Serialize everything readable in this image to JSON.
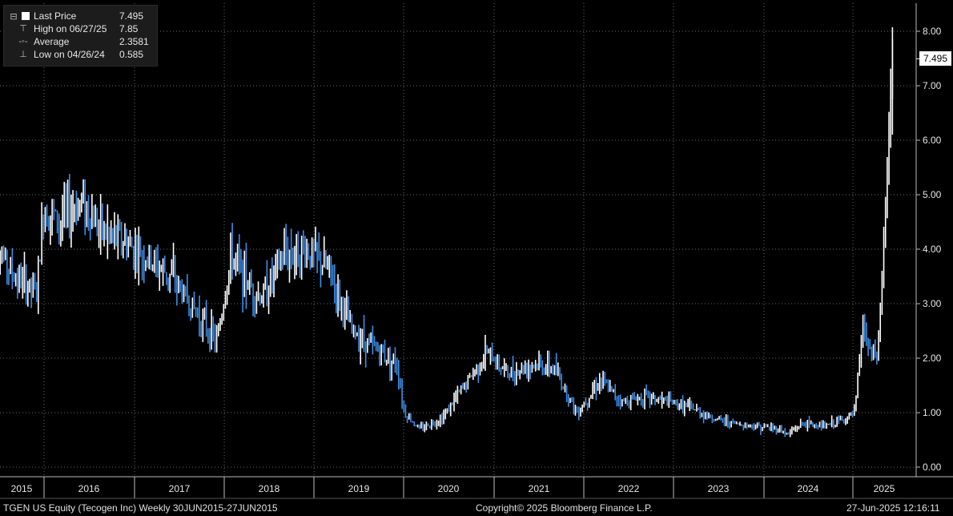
{
  "legend": {
    "last_label": "Last Price",
    "last_value": "7.495",
    "high_label": "High on 06/27/25",
    "high_value": "7.85",
    "avg_label": "Average",
    "avg_value": "2.3581",
    "low_label": "Low on 04/26/24",
    "low_value": "0.585"
  },
  "footer": {
    "left": "TGEN US Equity (Tecogen Inc)  Weekly 30JUN2015-27JUN2015",
    "center": "Copyright© 2025 Bloomberg Finance L.P.",
    "right": "27-Jun-2025 12:16:11"
  },
  "last_tag": "7.495",
  "colors": {
    "background": "#000000",
    "up": "#ffffff",
    "down": "#3d8ee8",
    "grid": "#6a6a6a",
    "text": "#e6e6e6"
  },
  "chart_data": {
    "type": "line",
    "frequency": "weekly",
    "title": "",
    "x_ticks": [
      "2015",
      "2016",
      "2017",
      "2018",
      "2019",
      "2020",
      "2021",
      "2022",
      "2023",
      "2024",
      "2025"
    ],
    "y_ticks": [
      "0.00",
      "1.00",
      "2.00",
      "3.00",
      "4.00",
      "5.00",
      "6.00",
      "7.00",
      "8.00"
    ],
    "ylim": [
      0,
      8.4
    ],
    "grid": true,
    "legend_position": "top-left",
    "y_axis_side": "right",
    "last_price": 7.495,
    "high": 7.85,
    "average": 2.3581,
    "low": 0.585,
    "series": [
      {
        "x": [
          "2015-06",
          "2015-09",
          "2015-12",
          "2016-01",
          "2016-03",
          "2016-06",
          "2016-09",
          "2016-12",
          "2017-03",
          "2017-06",
          "2017-09",
          "2017-12",
          "2018-02",
          "2018-04",
          "2018-06",
          "2018-09",
          "2018-12",
          "2019-03",
          "2019-06",
          "2019-09",
          "2019-12",
          "2020-01",
          "2020-03",
          "2020-06",
          "2020-09",
          "2020-12",
          "2021-03",
          "2021-06",
          "2021-09",
          "2021-12",
          "2022-03",
          "2022-06",
          "2022-09",
          "2022-12",
          "2023-03",
          "2023-06",
          "2023-09",
          "2023-12",
          "2024-03",
          "2024-04",
          "2024-06",
          "2024-09",
          "2024-12",
          "2025-01",
          "2025-02",
          "2025-03",
          "2025-04",
          "2025-05",
          "2025-06"
        ],
        "y": [
          4.2,
          3.5,
          3.2,
          4.8,
          4.5,
          4.9,
          4.3,
          4.1,
          3.8,
          3.5,
          2.9,
          2.3,
          3.9,
          3.4,
          3.1,
          3.9,
          4.0,
          3.6,
          2.5,
          2.2,
          1.9,
          1.0,
          0.7,
          0.9,
          1.5,
          2.1,
          1.7,
          1.9,
          1.8,
          1.0,
          1.6,
          1.2,
          1.3,
          1.2,
          1.1,
          0.9,
          0.8,
          0.75,
          0.7,
          0.6,
          0.8,
          0.75,
          0.9,
          1.0,
          2.6,
          2.1,
          2.0,
          4.5,
          7.495
        ]
      }
    ]
  }
}
